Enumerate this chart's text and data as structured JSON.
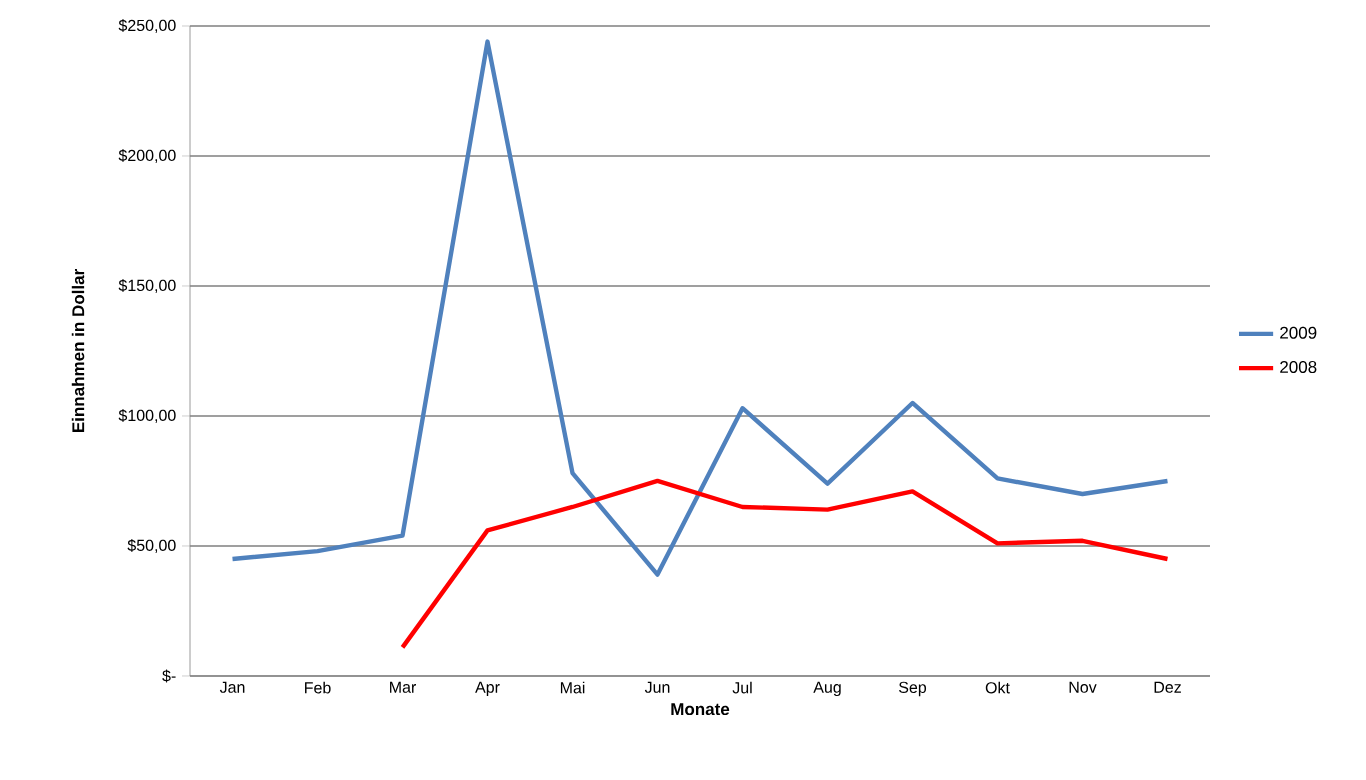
{
  "chart_data": {
    "type": "line",
    "xlabel": "Monate",
    "ylabel": "Einnahmen in Dollar",
    "categories": [
      "Jan",
      "Feb",
      "Mar",
      "Apr",
      "Mai",
      "Jun",
      "Jul",
      "Aug",
      "Sep",
      "Okt",
      "Nov",
      "Dez"
    ],
    "series": [
      {
        "name": "2009",
        "color": "#4f81bd",
        "values": [
          45,
          48,
          54,
          244,
          78,
          39,
          103,
          74,
          105,
          76,
          70,
          75
        ]
      },
      {
        "name": "2008",
        "color": "#ff0000",
        "values": [
          null,
          null,
          11,
          56,
          65,
          75,
          65,
          64,
          71,
          51,
          52,
          45
        ]
      }
    ],
    "ylim": [
      0,
      250
    ],
    "yticks": [
      {
        "value": 0,
        "label": "$-"
      },
      {
        "value": 50,
        "label": "$50,00"
      },
      {
        "value": 100,
        "label": "$100,00"
      },
      {
        "value": 150,
        "label": "$150,00"
      },
      {
        "value": 200,
        "label": "$200,00"
      },
      {
        "value": 250,
        "label": "$250,00"
      }
    ],
    "grid": "y",
    "legend": "right",
    "marker": "none",
    "line_style": "solid"
  }
}
